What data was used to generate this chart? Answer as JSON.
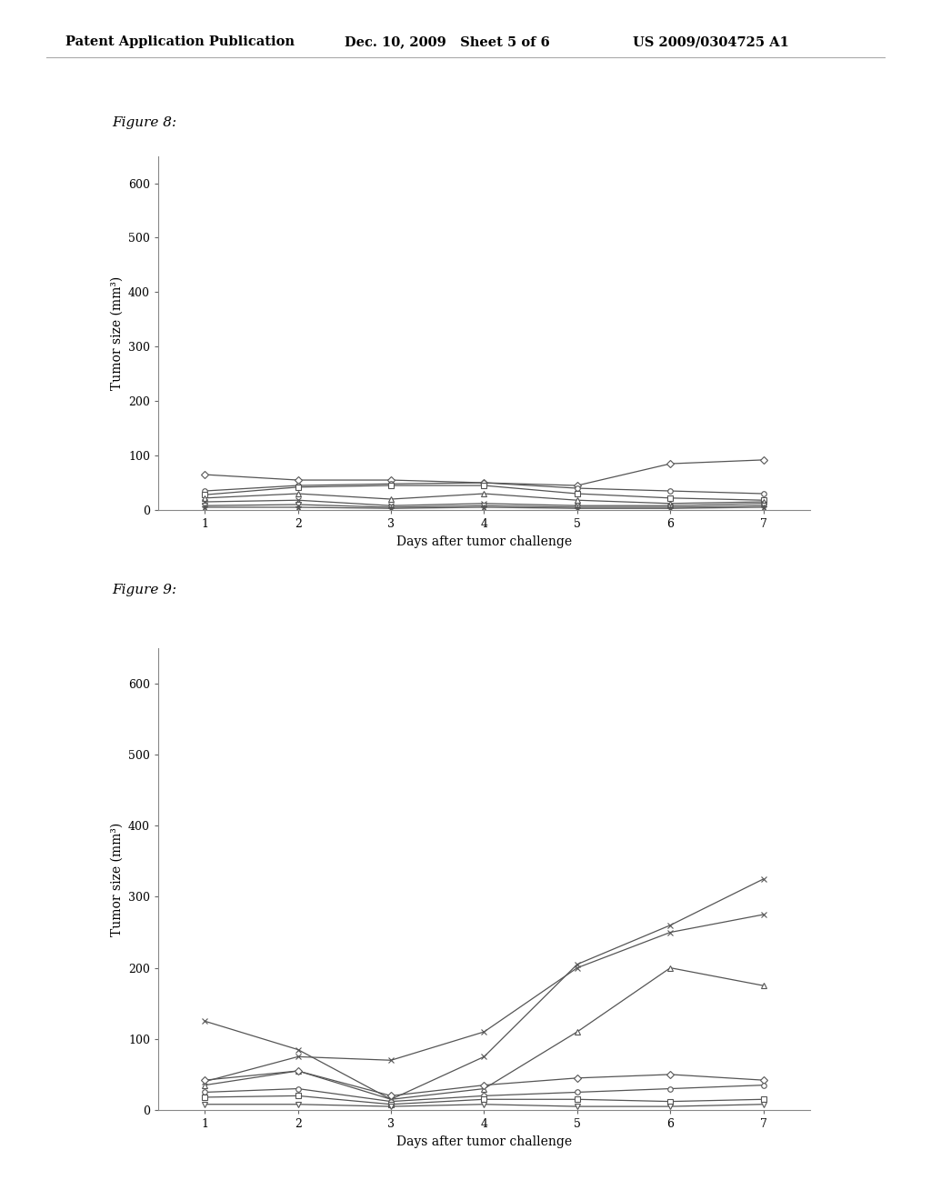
{
  "fig8_series": [
    {
      "x": [
        1,
        2,
        3,
        4,
        5,
        6,
        7
      ],
      "y": [
        65,
        55,
        55,
        50,
        45,
        85,
        92
      ],
      "marker": "D",
      "markersize": 4,
      "mfc": "white"
    },
    {
      "x": [
        1,
        2,
        3,
        4,
        5,
        6,
        7
      ],
      "y": [
        35,
        45,
        48,
        50,
        40,
        35,
        30
      ],
      "marker": "o",
      "markersize": 4,
      "mfc": "white"
    },
    {
      "x": [
        1,
        2,
        3,
        4,
        5,
        6,
        7
      ],
      "y": [
        28,
        42,
        45,
        45,
        30,
        22,
        18
      ],
      "marker": "s",
      "markersize": 4,
      "mfc": "white"
    },
    {
      "x": [
        1,
        2,
        3,
        4,
        5,
        6,
        7
      ],
      "y": [
        22,
        30,
        20,
        30,
        18,
        12,
        15
      ],
      "marker": "^",
      "markersize": 4,
      "mfc": "white"
    },
    {
      "x": [
        1,
        2,
        3,
        4,
        5,
        6,
        7
      ],
      "y": [
        15,
        18,
        8,
        12,
        8,
        8,
        12
      ],
      "marker": "x",
      "markersize": 5,
      "mfc": "none"
    },
    {
      "x": [
        1,
        2,
        3,
        4,
        5,
        6,
        7
      ],
      "y": [
        8,
        10,
        5,
        8,
        5,
        5,
        8
      ],
      "marker": "v",
      "markersize": 4,
      "mfc": "white"
    },
    {
      "x": [
        1,
        2,
        3,
        4,
        5,
        6,
        7
      ],
      "y": [
        5,
        5,
        3,
        5,
        3,
        3,
        5
      ],
      "marker": "*",
      "markersize": 5,
      "mfc": "none"
    }
  ],
  "fig9_series": [
    {
      "x": [
        1,
        2,
        3,
        4,
        5,
        6,
        7
      ],
      "y": [
        125,
        85,
        15,
        75,
        205,
        260,
        325
      ],
      "marker": "x",
      "markersize": 5,
      "mfc": "none"
    },
    {
      "x": [
        1,
        2,
        3,
        4,
        5,
        6,
        7
      ],
      "y": [
        40,
        75,
        70,
        110,
        200,
        250,
        275
      ],
      "marker": "x",
      "markersize": 5,
      "mfc": "none"
    },
    {
      "x": [
        1,
        2,
        3,
        4,
        5,
        6,
        7
      ],
      "y": [
        35,
        55,
        15,
        30,
        110,
        200,
        175
      ],
      "marker": "^",
      "markersize": 4,
      "mfc": "white"
    },
    {
      "x": [
        1,
        2,
        3,
        4,
        5,
        6,
        7
      ],
      "y": [
        42,
        55,
        20,
        35,
        45,
        50,
        42
      ],
      "marker": "D",
      "markersize": 4,
      "mfc": "white"
    },
    {
      "x": [
        1,
        2,
        3,
        4,
        5,
        6,
        7
      ],
      "y": [
        25,
        30,
        12,
        20,
        25,
        30,
        35
      ],
      "marker": "o",
      "markersize": 4,
      "mfc": "white"
    },
    {
      "x": [
        1,
        2,
        3,
        4,
        5,
        6,
        7
      ],
      "y": [
        18,
        20,
        8,
        15,
        15,
        12,
        15
      ],
      "marker": "s",
      "markersize": 4,
      "mfc": "white"
    },
    {
      "x": [
        1,
        2,
        3,
        4,
        5,
        6,
        7
      ],
      "y": [
        8,
        8,
        5,
        8,
        5,
        5,
        8
      ],
      "marker": "v",
      "markersize": 4,
      "mfc": "white"
    }
  ],
  "xlabel": "Days after tumor challenge",
  "ylabel": "Tumor size (mm³)",
  "ylim": [
    0,
    650
  ],
  "yticks": [
    0,
    100,
    200,
    300,
    400,
    500,
    600
  ],
  "xlim": [
    0.5,
    7.5
  ],
  "xticks": [
    1,
    2,
    3,
    4,
    5,
    6,
    7
  ],
  "fig8_label": "Figure 8:",
  "fig9_label": "Figure 9:",
  "header_left": "Patent Application Publication",
  "header_mid": "Dec. 10, 2009   Sheet 5 of 6",
  "header_right": "US 2009/0304725 A1",
  "bg_color": "#ffffff",
  "line_color": "#000000",
  "font_color": "#000000",
  "plot_line_color": "#555555"
}
